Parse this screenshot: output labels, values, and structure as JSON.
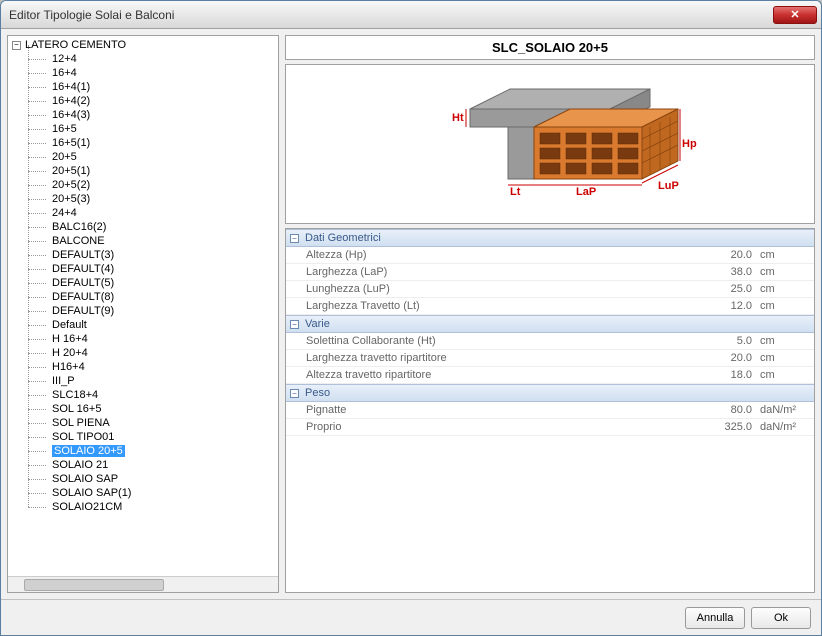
{
  "window": {
    "title": "Editor Tipologie Solai e Balconi"
  },
  "tree": {
    "root": "LATERO CEMENTO",
    "items": [
      "12+4",
      "16+4",
      "16+4(1)",
      "16+4(2)",
      "16+4(3)",
      "16+5",
      "16+5(1)",
      "20+5",
      "20+5(1)",
      "20+5(2)",
      "20+5(3)",
      "24+4",
      "BALC16(2)",
      "BALCONE",
      "DEFAULT(3)",
      "DEFAULT(4)",
      "DEFAULT(5)",
      "DEFAULT(8)",
      "DEFAULT(9)",
      "Default",
      "H 16+4",
      "H 20+4",
      "H16+4",
      "III_P",
      "SLC18+4",
      "SOL 16+5",
      "SOL PIENA",
      "SOL TIPO01",
      "SOLAIO 20+5",
      "SOLAIO 21",
      "SOLAIO SAP",
      "SOLAIO SAP(1)",
      "SOLAIO21CM"
    ],
    "selected": "SOLAIO 20+5"
  },
  "header": {
    "title": "SLC_SOLAIO 20+5"
  },
  "diagram": {
    "labels": {
      "ht": "Ht",
      "hp": "Hp",
      "lup": "LuP",
      "lap": "LaP",
      "lt": "Lt"
    },
    "colors": {
      "slab": "#9a9a9a",
      "slab_edge": "#6a6a6a",
      "brick": "#d97a2e",
      "brick_line": "#8a4510",
      "dim": "#cc0000"
    }
  },
  "props": {
    "sections": [
      {
        "title": "Dati Geometrici",
        "rows": [
          {
            "label": "Altezza (Hp)",
            "value": "20.0",
            "unit": "cm"
          },
          {
            "label": "Larghezza (LaP)",
            "value": "38.0",
            "unit": "cm"
          },
          {
            "label": "Lunghezza (LuP)",
            "value": "25.0",
            "unit": "cm"
          },
          {
            "label": "Larghezza Travetto (Lt)",
            "value": "12.0",
            "unit": "cm"
          }
        ]
      },
      {
        "title": "Varie",
        "rows": [
          {
            "label": "Solettina Collaborante (Ht)",
            "value": "5.0",
            "unit": "cm"
          },
          {
            "label": "Larghezza travetto ripartitore",
            "value": "20.0",
            "unit": "cm"
          },
          {
            "label": "Altezza travetto ripartitore",
            "value": "18.0",
            "unit": "cm"
          }
        ]
      },
      {
        "title": "Peso",
        "rows": [
          {
            "label": "Pignatte",
            "value": "80.0",
            "unit": "daN/m²"
          },
          {
            "label": "Proprio",
            "value": "325.0",
            "unit": "daN/m²"
          }
        ]
      }
    ]
  },
  "footer": {
    "cancel": "Annulla",
    "ok": "Ok"
  }
}
